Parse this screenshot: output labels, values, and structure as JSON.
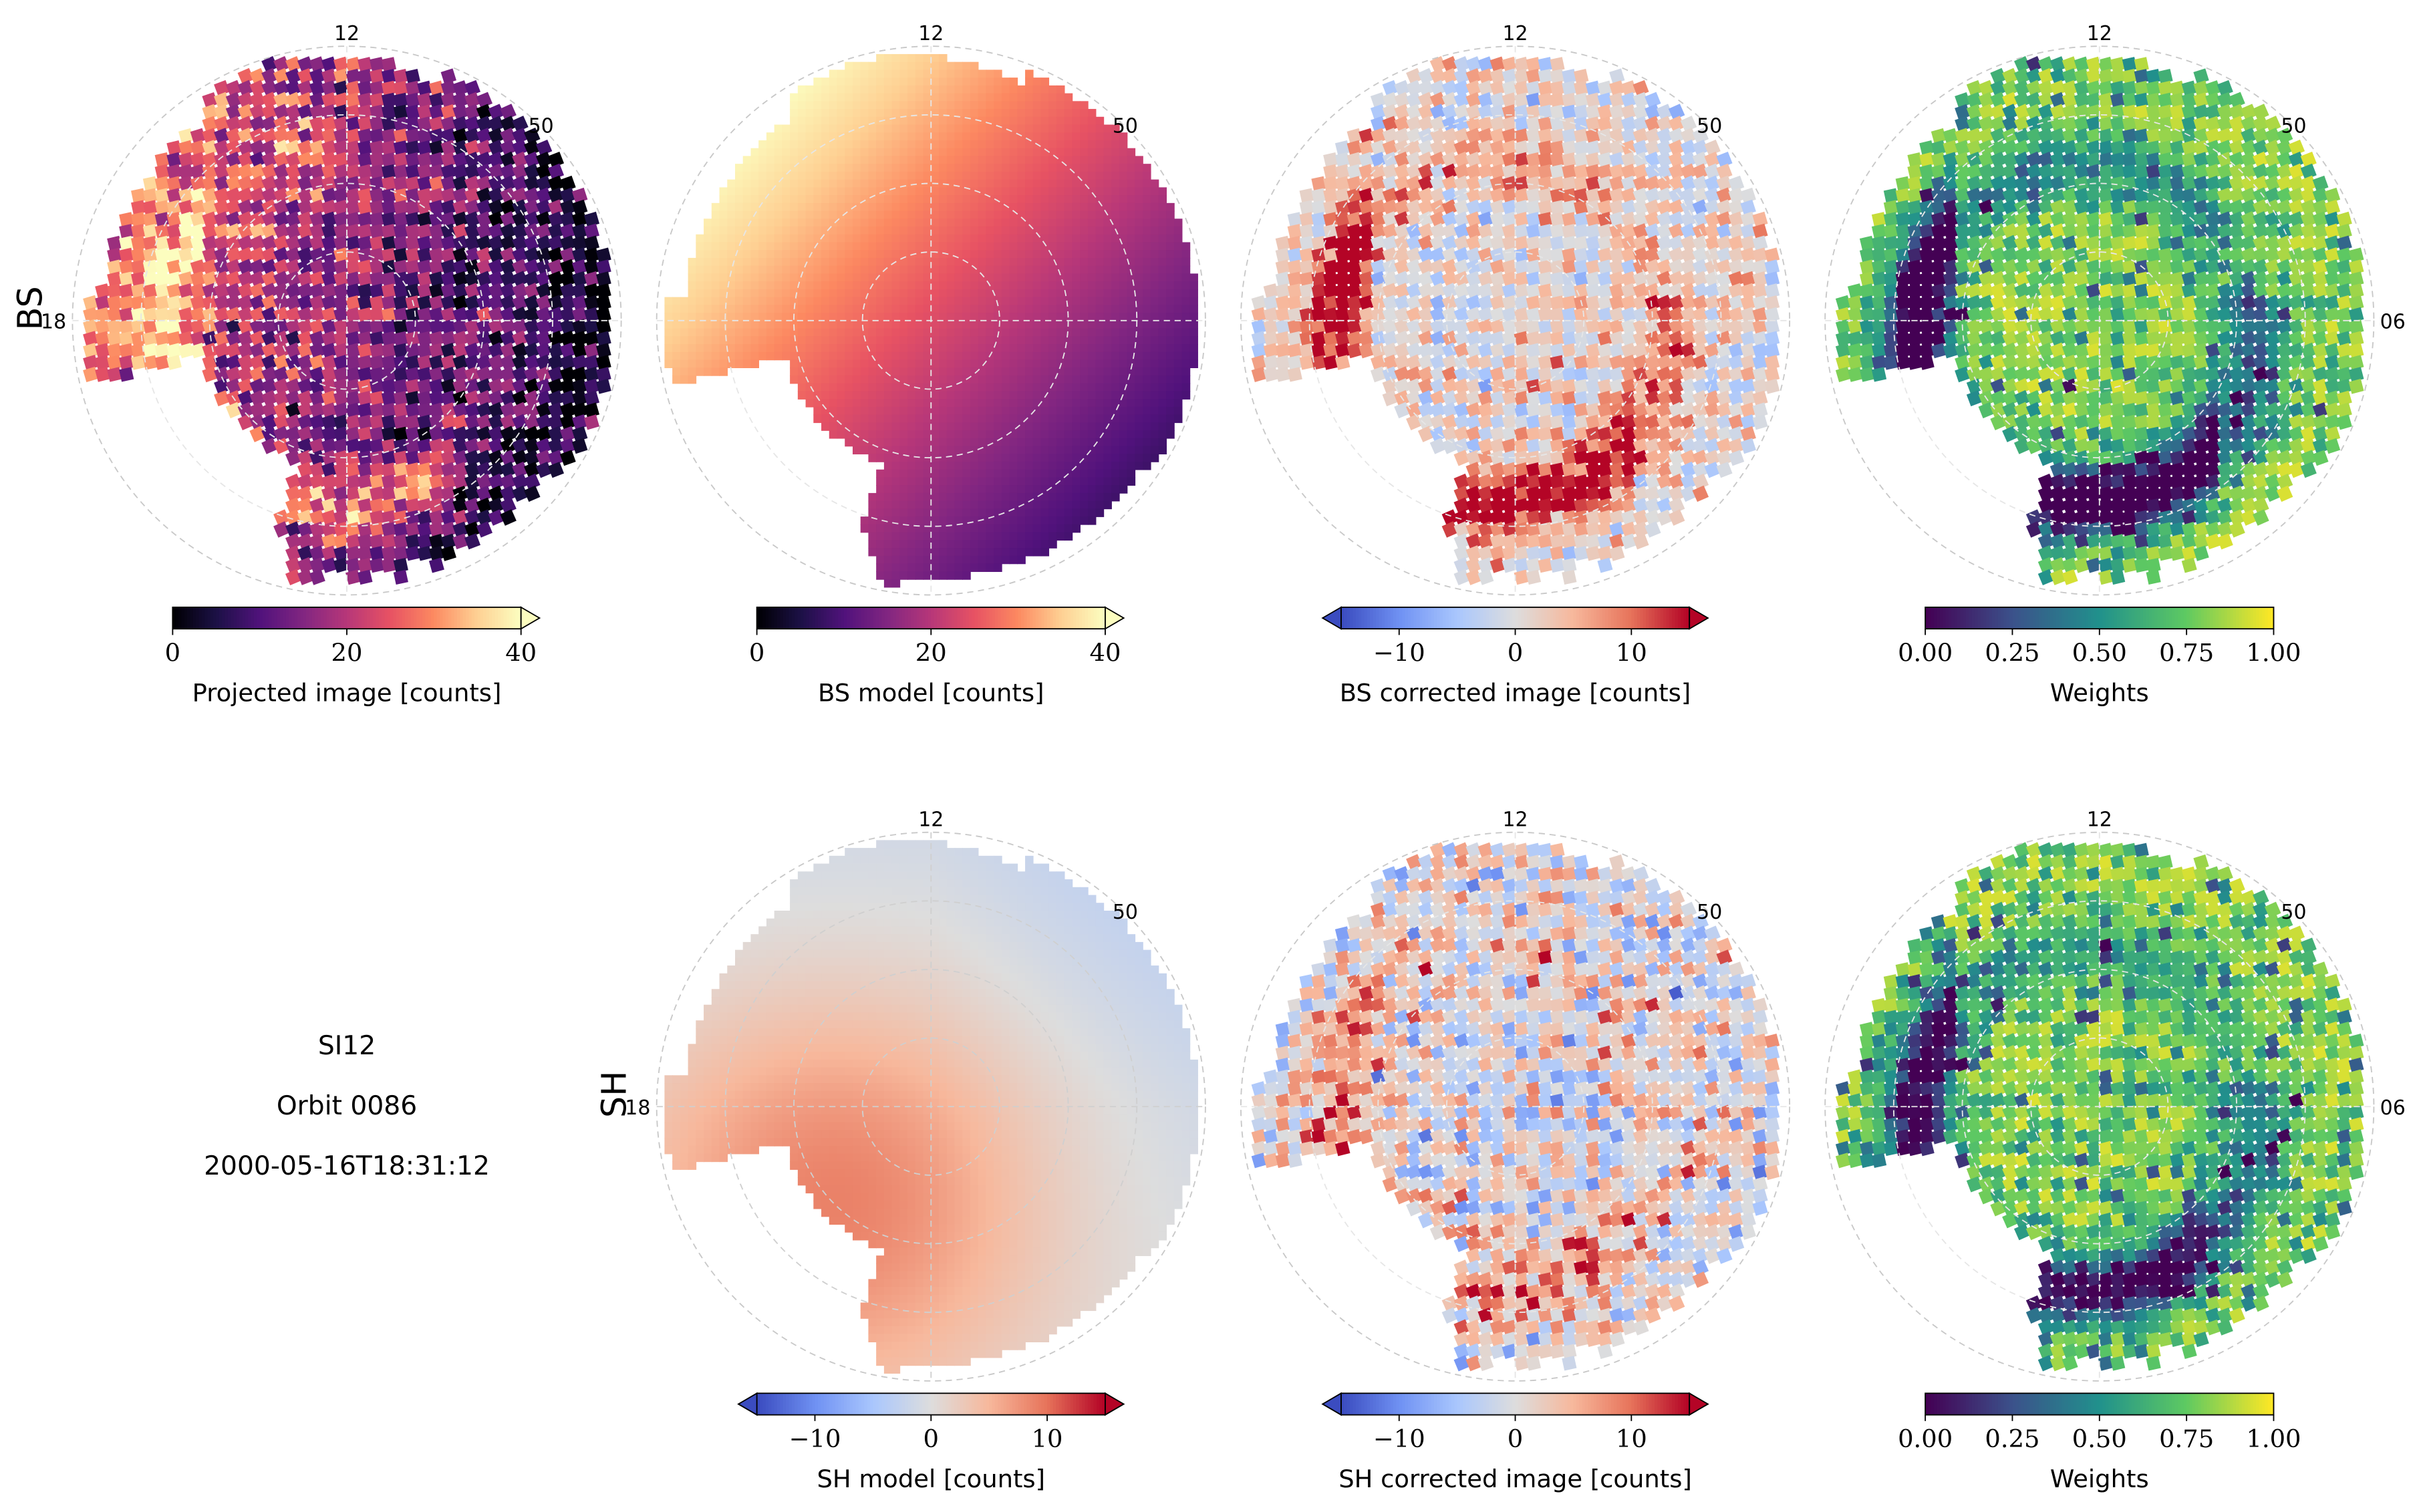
{
  "info": {
    "instrument": "SI12",
    "orbit": "Orbit 0086",
    "timestamp": "2000-05-16T18:31:12"
  },
  "row_labels": {
    "top": "BS",
    "bottom": "SH"
  },
  "axis_ticks": {
    "mlt_top": "12",
    "mlt_left": "18",
    "mlt_right": "06",
    "mlat": "50"
  },
  "colormaps": {
    "magma": [
      "#000004",
      "#1d1147",
      "#51127c",
      "#822681",
      "#b73779",
      "#e75263",
      "#fc8961",
      "#fecf92",
      "#fcfdbf"
    ],
    "coolwarm": [
      "#3b4cc0",
      "#7092f3",
      "#aac7fd",
      "#dddddd",
      "#f7b89c",
      "#e7745b",
      "#b40426"
    ],
    "viridis": [
      "#440154",
      "#3b528b",
      "#21918c",
      "#5ec962",
      "#fde725"
    ]
  },
  "chart_data": [
    {
      "type": "heatmap",
      "panel": "bs-projected-image",
      "colormap": "magma",
      "clim": [
        0,
        40
      ],
      "extend": "max",
      "cbar_ticks": [
        "0",
        "20",
        "40"
      ],
      "cbar_label": "Projected image [counts]",
      "mlt_labels_shown": [
        "12",
        "18"
      ],
      "mlat_label_shown": "50"
    },
    {
      "type": "heatmap",
      "panel": "bs-model",
      "colormap": "magma",
      "clim": [
        0,
        40
      ],
      "extend": "max",
      "cbar_ticks": [
        "0",
        "20",
        "40"
      ],
      "cbar_label": "BS model [counts]",
      "mlt_labels_shown": [
        "12"
      ],
      "mlat_label_shown": "50"
    },
    {
      "type": "heatmap",
      "panel": "bs-corrected-image",
      "colormap": "coolwarm",
      "clim": [
        -15,
        15
      ],
      "extend": "both",
      "cbar_ticks": [
        "−10",
        "0",
        "10"
      ],
      "cbar_label": "BS corrected image [counts]",
      "mlt_labels_shown": [
        "12"
      ],
      "mlat_label_shown": "50"
    },
    {
      "type": "heatmap",
      "panel": "bs-weights",
      "colormap": "viridis",
      "clim": [
        0,
        1
      ],
      "extend": "neither",
      "cbar_ticks": [
        "0.00",
        "0.25",
        "0.50",
        "0.75",
        "1.00"
      ],
      "cbar_label": "Weights",
      "mlt_labels_shown": [
        "12",
        "06"
      ],
      "mlat_label_shown": "50"
    },
    {
      "type": "heatmap",
      "panel": "sh-model",
      "colormap": "coolwarm",
      "clim": [
        -15,
        15
      ],
      "extend": "both",
      "cbar_ticks": [
        "−10",
        "0",
        "10"
      ],
      "cbar_label": "SH model [counts]",
      "mlt_labels_shown": [
        "12",
        "18"
      ],
      "mlat_label_shown": "50"
    },
    {
      "type": "heatmap",
      "panel": "sh-corrected-image",
      "colormap": "coolwarm",
      "clim": [
        -15,
        15
      ],
      "extend": "both",
      "cbar_ticks": [
        "−10",
        "0",
        "10"
      ],
      "cbar_label": "SH corrected image [counts]",
      "mlt_labels_shown": [
        "12"
      ],
      "mlat_label_shown": "50"
    },
    {
      "type": "heatmap",
      "panel": "sh-weights",
      "colormap": "viridis",
      "clim": [
        0,
        1
      ],
      "extend": "neither",
      "cbar_ticks": [
        "0.00",
        "0.25",
        "0.50",
        "0.75",
        "1.00"
      ],
      "cbar_label": "Weights",
      "mlt_labels_shown": [
        "12",
        "06"
      ],
      "mlat_label_shown": "50"
    }
  ]
}
